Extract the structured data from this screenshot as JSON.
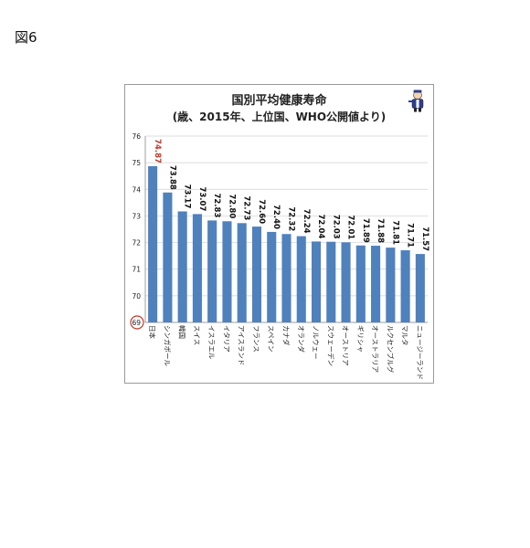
{
  "figure_label": "図6",
  "chart_data": {
    "type": "bar",
    "title": "国別平均健康寿命",
    "subtitle": "(歳、2015年、上位国、WHO公開値より)",
    "categories": [
      "日本",
      "シンガポール",
      "韓国",
      "スイス",
      "イスラエル",
      "イタリア",
      "アイスランド",
      "フランス",
      "スペイン",
      "カナダ",
      "オランダ",
      "ノルウェー",
      "スウェーデン",
      "オーストリア",
      "ギリシャ",
      "オーストラリア",
      "ルクセンブルグ",
      "マルタ",
      "ニュージーランド"
    ],
    "values": [
      74.87,
      73.88,
      73.17,
      73.07,
      72.83,
      72.8,
      72.73,
      72.6,
      72.4,
      72.32,
      72.24,
      72.04,
      72.03,
      72.01,
      71.89,
      71.88,
      71.81,
      71.71,
      71.57
    ],
    "value_labels": [
      "74.87",
      "73.88",
      "73.17",
      "73.07",
      "72.83",
      "72.80",
      "72.73",
      "72.60",
      "72.40",
      "72.32",
      "72.24",
      "72.04",
      "72.03",
      "72.01",
      "71.89",
      "71.88",
      "71.81",
      "71.71",
      "71.57"
    ],
    "ylim": [
      69,
      76
    ],
    "yticks": [
      "69",
      "70",
      "71",
      "72",
      "73",
      "74",
      "75",
      "76"
    ],
    "grid": true,
    "bar_color": "#4f81bd",
    "highlight_color": "#c0392b",
    "highlight_index": 0,
    "highlighted_tick": "69",
    "mascot_icon": "doctor-mascot-icon"
  }
}
